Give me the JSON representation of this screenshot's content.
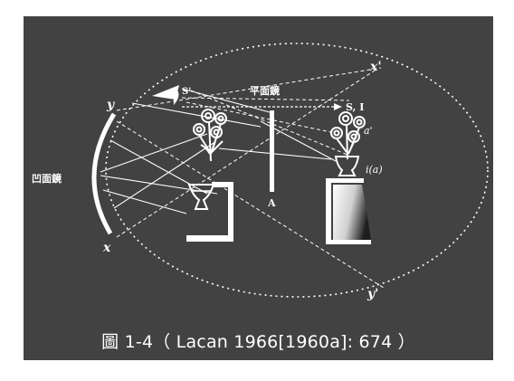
{
  "labels": {
    "x_prime": "x'",
    "y": "y",
    "s_prime": "S'",
    "plane_mirror": "平面鏡",
    "s_i": "S, I",
    "a_prime": "a'",
    "i_a": "i(a)",
    "concave_mirror": "凹面鏡",
    "a": "A",
    "x": "x",
    "y_prime": "y'"
  },
  "caption": "圖 1-4（ Lacan 1966[1960a]: 674 ）",
  "colors": {
    "panel": "#424242",
    "ink": "#ffffff"
  }
}
